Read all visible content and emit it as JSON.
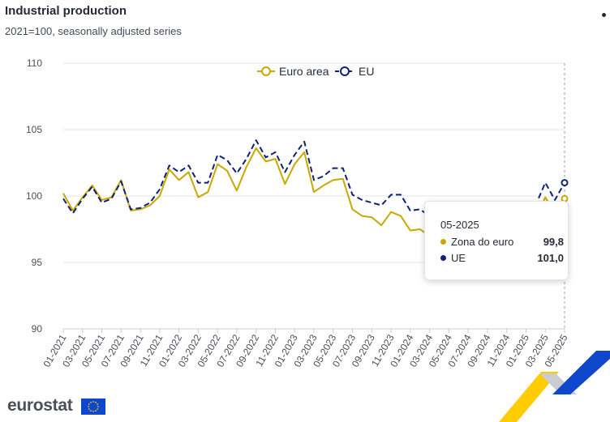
{
  "header": {
    "title": "Industrial production",
    "subtitle": "2021=100, seasonally adjusted series"
  },
  "colors": {
    "euro_area": "#c9a800",
    "eu": "#0e2473",
    "grid": "#e6e6e6",
    "axis_text": "#4b4f57",
    "logo_blue": "#0e47cb",
    "logo_yellow": "#ffcc00"
  },
  "chart_data": {
    "type": "line",
    "title": "Industrial production",
    "subtitle": "2021=100, seasonally adjusted series",
    "ylim": [
      90,
      110
    ],
    "y_ticks": [
      90,
      95,
      100,
      105,
      110
    ],
    "x_tick_labels": [
      "01-2021",
      "03-2021",
      "05-2021",
      "07-2021",
      "09-2021",
      "11-2021",
      "01-2022",
      "03-2022",
      "05-2022",
      "07-2022",
      "09-2022",
      "11-2022",
      "01-2023",
      "03-2023",
      "05-2023",
      "07-2023",
      "09-2023",
      "11-2023",
      "01-2024",
      "03-2024",
      "05-2024",
      "07-2024",
      "09-2024",
      "11-2024",
      "01-2025",
      "03-2025",
      "05-2025"
    ],
    "x": [
      "01-2021",
      "02-2021",
      "03-2021",
      "04-2021",
      "05-2021",
      "06-2021",
      "07-2021",
      "08-2021",
      "09-2021",
      "10-2021",
      "11-2021",
      "12-2021",
      "01-2022",
      "02-2022",
      "03-2022",
      "04-2022",
      "05-2022",
      "06-2022",
      "07-2022",
      "08-2022",
      "09-2022",
      "10-2022",
      "11-2022",
      "12-2022",
      "01-2023",
      "02-2023",
      "03-2023",
      "04-2023",
      "05-2023",
      "06-2023",
      "07-2023",
      "08-2023",
      "09-2023",
      "10-2023",
      "11-2023",
      "12-2023",
      "01-2024",
      "02-2024",
      "03-2024",
      "04-2024",
      "05-2024",
      "06-2024",
      "07-2024",
      "08-2024",
      "09-2024",
      "10-2024",
      "11-2024",
      "12-2024",
      "01-2025",
      "02-2025",
      "03-2025",
      "04-2025",
      "05-2025"
    ],
    "legend_position": "top-center",
    "grid": true,
    "series": [
      {
        "name": "Euro area",
        "style": "solid",
        "values": [
          100.2,
          98.9,
          99.9,
          100.8,
          99.7,
          99.9,
          101.2,
          98.9,
          99.0,
          99.3,
          100.0,
          102.0,
          101.2,
          101.8,
          99.9,
          100.3,
          102.4,
          101.9,
          100.4,
          102.2,
          103.6,
          102.6,
          102.8,
          100.9,
          102.4,
          103.3,
          100.3,
          100.8,
          101.2,
          101.3,
          99.0,
          98.5,
          98.4,
          97.8,
          98.8,
          98.5,
          97.4,
          97.5,
          97.0,
          97.8,
          97.5,
          97.6,
          97.6,
          97.5,
          97.6,
          97.7,
          97.7,
          97.8,
          98.0,
          98.2,
          99.9,
          98.7,
          99.8
        ]
      },
      {
        "name": "EU",
        "style": "dashed",
        "values": [
          99.8,
          98.7,
          99.8,
          100.7,
          99.5,
          99.8,
          101.1,
          99.0,
          99.1,
          99.5,
          100.5,
          102.3,
          101.8,
          102.3,
          101.0,
          101.0,
          103.1,
          102.7,
          101.7,
          102.8,
          104.2,
          102.9,
          103.3,
          101.8,
          103.1,
          104.1,
          101.2,
          101.5,
          102.1,
          102.1,
          100.1,
          99.7,
          99.5,
          99.3,
          100.1,
          100.1,
          98.9,
          99.0,
          98.5,
          98.6,
          98.5,
          98.5,
          98.4,
          98.5,
          98.5,
          98.6,
          98.6,
          98.8,
          99.0,
          99.3,
          101.0,
          99.7,
          101.0
        ]
      }
    ],
    "tooltip": {
      "period": "05-2025",
      "rows": [
        {
          "label": "Zona do euro",
          "value": "99,8"
        },
        {
          "label": "UE",
          "value": "101,0"
        }
      ]
    }
  },
  "branding": {
    "logo_text": "eurostat"
  }
}
